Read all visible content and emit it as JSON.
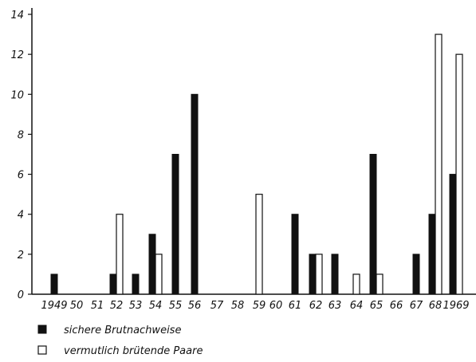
{
  "chart_data": {
    "type": "bar",
    "categories": [
      "1949",
      "50",
      "51",
      "52",
      "53",
      "54",
      "55",
      "56",
      "57",
      "58",
      "59",
      "60",
      "61",
      "62",
      "63",
      "64",
      "65",
      "66",
      "67",
      "68",
      "1969"
    ],
    "series": [
      {
        "name": "sichere Brutnachweise",
        "color": "#111111",
        "values": [
          1,
          0,
          0,
          1,
          1,
          3,
          7,
          10,
          0,
          0,
          0,
          0,
          4,
          2,
          2,
          0,
          7,
          0,
          2,
          4,
          6
        ]
      },
      {
        "name": "vermutlich brütende Paare",
        "color": "#ffffff",
        "values": [
          0,
          0,
          0,
          4,
          0,
          2,
          0,
          0,
          0,
          0,
          5,
          0,
          0,
          2,
          0,
          1,
          1,
          0,
          0,
          13,
          12
        ]
      }
    ],
    "yticks": [
      0,
      2,
      4,
      6,
      8,
      10,
      12,
      14
    ],
    "ylim": [
      0,
      14
    ],
    "title": "",
    "xlabel": "",
    "ylabel": "",
    "grid": false,
    "legend_position": "bottom-left"
  }
}
